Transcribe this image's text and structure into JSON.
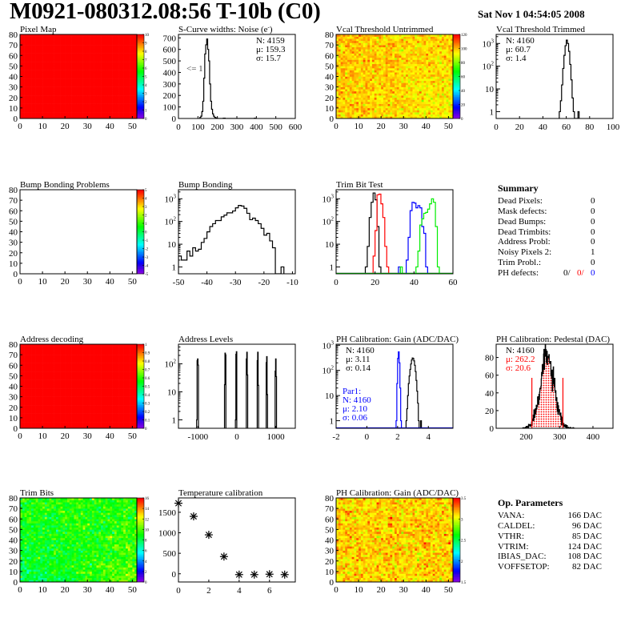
{
  "header": {
    "title": "M0921-080312.08:56 T-10b (C0)",
    "date": "Sat Nov  1 04:54:05 2008"
  },
  "summary": {
    "title": "Summary",
    "rows": [
      {
        "label": "Dead Pixels:",
        "value": "0"
      },
      {
        "label": "Mask defects:",
        "value": "0"
      },
      {
        "label": "Dead Bumps:",
        "value": "0"
      },
      {
        "label": "Dead Trimbits:",
        "value": "0"
      },
      {
        "label": "Address Probl:",
        "value": "0"
      },
      {
        "label": "Noisy Pixels 2:",
        "value": "1"
      },
      {
        "label": "Trim Probl.:",
        "value": "0"
      }
    ],
    "ph_defects": {
      "label": "PH defects:",
      "v1": "0/",
      "v2": "0/",
      "v3": "0",
      "c1": "#000000",
      "c2": "#ff0000",
      "c3": "#0000ff"
    }
  },
  "op_params": {
    "title": "Op. Parameters",
    "rows": [
      {
        "label": "VANA:",
        "value": "166 DAC"
      },
      {
        "label": "CALDEL:",
        "value": "96 DAC"
      },
      {
        "label": "VTHR:",
        "value": "85 DAC"
      },
      {
        "label": "VTRIM:",
        "value": "124 DAC"
      },
      {
        "label": "IBIAS_DAC:",
        "value": "108 DAC"
      },
      {
        "label": "VOFFSETOP:",
        "value": "82 DAC"
      }
    ]
  },
  "chart_data": [
    {
      "type": "heatmap",
      "title": "Pixel Map",
      "xlim": [
        0,
        52
      ],
      "ylim": [
        0,
        80
      ],
      "xticks": [
        "0",
        "10",
        "20",
        "30",
        "40",
        "50"
      ],
      "yticks": [
        "0",
        "10",
        "20",
        "30",
        "40",
        "50",
        "60",
        "70",
        "80"
      ],
      "zlim": [
        0,
        10
      ],
      "zticks": [
        "0",
        "1",
        "2",
        "3",
        "4",
        "5",
        "6",
        "7",
        "8",
        "9",
        "10"
      ],
      "model": {
        "mean": 10,
        "sigma": 0,
        "gx": 0,
        "gy": 0
      }
    },
    {
      "type": "hist",
      "title": "S-Curve widths: Noise (e",
      "title_sup": "-",
      "title_end": ")",
      "xlim": [
        0,
        600
      ],
      "ylim": [
        0,
        730
      ],
      "xticks": [
        0,
        100,
        200,
        300,
        400,
        500,
        600
      ],
      "yticks": [
        0,
        100,
        200,
        300,
        400,
        500,
        600,
        700
      ],
      "stats": [
        "N: 4159",
        "μ: 159.3",
        "σ: 15.7"
      ],
      "annotation": "<= 1",
      "series": [
        {
          "color": "#000000",
          "x0": 110,
          "bw": 5,
          "counts": [
            10,
            20,
            60,
            150,
            350,
            560,
            640,
            690,
            600,
            500,
            300,
            150,
            80,
            40,
            20,
            10,
            5,
            3,
            0,
            0,
            0,
            0,
            0,
            0,
            3,
            3,
            0,
            0,
            0,
            0,
            0,
            0,
            0,
            0,
            0,
            0,
            0,
            0,
            0,
            0,
            0,
            0,
            0,
            0,
            0,
            0,
            0,
            0,
            0,
            0,
            0,
            0,
            0,
            0,
            0,
            0,
            3,
            0
          ]
        }
      ]
    },
    {
      "type": "heatmap",
      "title": "Vcal Threshold Untrimmed",
      "xlim": [
        0,
        52
      ],
      "ylim": [
        0,
        80
      ],
      "xticks": [
        "0",
        "10",
        "20",
        "30",
        "40",
        "50"
      ],
      "yticks": [
        "0",
        "10",
        "20",
        "30",
        "40",
        "50",
        "60",
        "70",
        "80"
      ],
      "zlim": [
        0,
        130
      ],
      "zticks": [
        "0",
        "20",
        "40",
        "60",
        "80",
        "100",
        "120"
      ],
      "model": {
        "mean": 106,
        "sigma": 5,
        "gx": -8,
        "gy": 6
      }
    },
    {
      "type": "hist",
      "log": true,
      "title": "Vcal Threshold Trimmed",
      "xlim": [
        0,
        100
      ],
      "ylim": [
        0.5,
        2500
      ],
      "xticks": [
        0,
        20,
        40,
        60,
        80,
        100
      ],
      "stats": [
        "N: 4160",
        "μ: 60.7",
        "σ:  1.4"
      ],
      "series": [
        {
          "color": "#000000",
          "x0": 54,
          "bw": 1,
          "counts": [
            1,
            3,
            15,
            80,
            300,
            800,
            1400,
            1000,
            450,
            120,
            25,
            4,
            1,
            0,
            0,
            0,
            1
          ]
        }
      ]
    },
    {
      "type": "heatmap",
      "title": "Bump Bonding Problems",
      "xlim": [
        0,
        52
      ],
      "ylim": [
        0,
        80
      ],
      "xticks": [
        "0",
        "10",
        "20",
        "30",
        "40",
        "50"
      ],
      "yticks": [
        "0",
        "10",
        "20",
        "30",
        "40",
        "50",
        "60",
        "70",
        "80"
      ],
      "zlim": [
        -5,
        5
      ],
      "zticks": [
        "-5",
        "-4",
        "-3",
        "-2",
        "-1",
        "0",
        "1",
        "2",
        "3",
        "4",
        "5"
      ],
      "model": null
    },
    {
      "type": "hist",
      "log": true,
      "title": "Bump Bonding",
      "xlim": [
        -50,
        -9
      ],
      "ylim": [
        0.5,
        2500
      ],
      "xticks": [
        -50,
        -40,
        -30,
        -20,
        -10
      ],
      "series": [
        {
          "color": "#000000",
          "x0": -50,
          "bw": 1,
          "counts": [
            3,
            2,
            2,
            5,
            3,
            7,
            5,
            6,
            12,
            18,
            35,
            60,
            80,
            110,
            110,
            160,
            190,
            240,
            240,
            290,
            400,
            510,
            480,
            380,
            230,
            120,
            140,
            110,
            80,
            50,
            25,
            30,
            14,
            7,
            0,
            0,
            1
          ]
        }
      ]
    },
    {
      "type": "hist",
      "log": true,
      "title": "Trim Bit Test",
      "xlim": [
        0,
        60
      ],
      "ylim": [
        0.5,
        2500
      ],
      "xticks": [
        0,
        20,
        40,
        60
      ],
      "series": [
        {
          "color": "#000000",
          "x0": 15,
          "bw": 1,
          "counts": [
            1,
            8,
            150,
            700,
            1800,
            900,
            60,
            1
          ]
        },
        {
          "color": "#ff0000",
          "x0": 19,
          "bw": 1,
          "counts": [
            3,
            40,
            1500,
            1600,
            600,
            150,
            8,
            1
          ]
        },
        {
          "color": "#0000ff",
          "x0": 32,
          "bw": 1,
          "counts": [
            1,
            0,
            0,
            0,
            2,
            20,
            300,
            700,
            650,
            400,
            500,
            400,
            60,
            30,
            1
          ]
        },
        {
          "color": "#00ee00",
          "x0": 33,
          "bw": 1,
          "counts": [
            1,
            0,
            0,
            0,
            0,
            0,
            0,
            0,
            1,
            5,
            70,
            130,
            230,
            250,
            350,
            600,
            1000,
            700,
            60,
            1
          ]
        }
      ]
    },
    {
      "type": "heatmap",
      "title": "Address decoding",
      "xlim": [
        0,
        52
      ],
      "ylim": [
        0,
        80
      ],
      "xticks": [
        "0",
        "10",
        "20",
        "30",
        "40",
        "50"
      ],
      "yticks": [
        "0",
        "10",
        "20",
        "30",
        "40",
        "50",
        "60",
        "70",
        "80"
      ],
      "zlim": [
        0,
        1
      ],
      "zticks": [
        "0",
        "0.1",
        "0.2",
        "0.3",
        "0.4",
        "0.5",
        "0.6",
        "0.7",
        "0.8",
        "0.9",
        "1"
      ],
      "model": {
        "mean": 1,
        "sigma": 0,
        "gx": 0,
        "gy": 0
      }
    },
    {
      "type": "hist",
      "log": true,
      "title": "Address Levels",
      "xlim": [
        -1500,
        1500
      ],
      "ylim": [
        0.5,
        500
      ],
      "xticks": [
        -1000,
        0,
        1000
      ],
      "series": [
        {
          "color": "#000000",
          "spikes": [
            {
              "x": -1010,
              "bw": 12,
              "counts": [
                1,
                130,
                150,
                90
              ]
            },
            {
              "x": -300,
              "bw": 12,
              "counts": [
                18,
                240,
                210
              ]
            },
            {
              "x": -20,
              "bw": 12,
              "counts": [
                1,
                220,
                270
              ]
            },
            {
              "x": 260,
              "bw": 12,
              "counts": [
                150,
                260,
                40
              ]
            },
            {
              "x": 540,
              "bw": 12,
              "counts": [
                130,
                260,
                17
              ]
            },
            {
              "x": 770,
              "bw": 12,
              "counts": [
                110,
                180,
                8
              ]
            },
            {
              "x": 1000,
              "bw": 12,
              "counts": [
                55,
                150,
                35
              ]
            }
          ]
        }
      ]
    },
    {
      "type": "hist",
      "log": true,
      "title": "PH Calibration: Gain (ADC/DAC)",
      "xlim": [
        -2,
        5.6
      ],
      "ylim": [
        0.5,
        1100
      ],
      "xticks": [
        -2,
        0,
        2,
        4
      ],
      "stats": [
        "N: 4160",
        "μ: 3.11",
        "σ: 0.14"
      ],
      "stats2": {
        "color": "#0000ff",
        "lines": [
          "Par1:",
          "N: 4160",
          "μ: 2.10",
          "σ: 0.06"
        ]
      },
      "series": [
        {
          "color": "#000000",
          "x0": 2.5,
          "bw": 0.05,
          "counts": [
            0,
            1,
            3,
            10,
            30,
            60,
            110,
            180,
            260,
            310,
            300,
            240,
            160,
            90,
            40,
            15,
            5,
            1,
            0,
            0,
            1
          ]
        },
        {
          "color": "#0000ff",
          "x0": 1.9,
          "bw": 0.05,
          "counts": [
            1,
            30,
            300,
            550,
            200,
            20,
            1
          ]
        }
      ]
    },
    {
      "type": "pedestal",
      "title": "PH Calibration: Pedestal (DAC)",
      "xlim": [
        110,
        460
      ],
      "ylim": [
        0,
        95
      ],
      "xticks": [
        200,
        300,
        400
      ],
      "yticks": [
        0,
        20,
        40,
        60,
        80
      ],
      "stats": [
        "N: 4160"
      ],
      "stats_red": [
        "μ: 262.2",
        "σ: 20.6"
      ],
      "gauss": {
        "mean": 262.2,
        "sigma": 20.6,
        "n": 4160,
        "bw": 1,
        "from": 190,
        "to": 345
      },
      "fit_range": [
        217,
        310
      ],
      "colors": {
        "hist": "#000000",
        "fit": "#ff0000"
      }
    },
    {
      "type": "heatmap",
      "title": "Trim Bits",
      "xlim": [
        0,
        52
      ],
      "ylim": [
        0,
        80
      ],
      "xticks": [
        "0",
        "10",
        "20",
        "30",
        "40",
        "50"
      ],
      "yticks": [
        "0",
        "10",
        "20",
        "30",
        "40",
        "50",
        "60",
        "70",
        "80"
      ],
      "zlim": [
        0,
        16
      ],
      "zticks": [
        "0",
        "2",
        "4",
        "6",
        "8",
        "10",
        "12",
        "14",
        "16"
      ],
      "model": {
        "mean": 9.2,
        "sigma": 0.9,
        "gx": 2.2,
        "gy": 0.6
      }
    },
    {
      "type": "scatter",
      "title": "Temperature calibration",
      "xlim": [
        0,
        7.7
      ],
      "ylim": [
        -200,
        1850
      ],
      "xticks": [
        0,
        2,
        4,
        6
      ],
      "yticks": [
        0,
        500,
        1000,
        1500
      ],
      "x": [
        0,
        1,
        2,
        3,
        4,
        5,
        6,
        7
      ],
      "y": [
        1720,
        1400,
        950,
        420,
        -20,
        -20,
        -10,
        -20
      ]
    },
    {
      "type": "heatmap",
      "title": "PH Calibration: Gain (ADC/DAC)",
      "xlim": [
        0,
        52
      ],
      "ylim": [
        0,
        80
      ],
      "xticks": [
        "0",
        "10",
        "20",
        "30",
        "40",
        "50"
      ],
      "yticks": [
        "0",
        "10",
        "20",
        "30",
        "40",
        "50",
        "60",
        "70",
        "80"
      ],
      "zlim": [
        1.5,
        3.6
      ],
      "zticks": [
        "1.5",
        "2",
        "2.5",
        "3",
        "3.5"
      ],
      "model": {
        "mean": 3.22,
        "sigma": 0.1,
        "gx": 0,
        "gy": 0
      }
    }
  ]
}
